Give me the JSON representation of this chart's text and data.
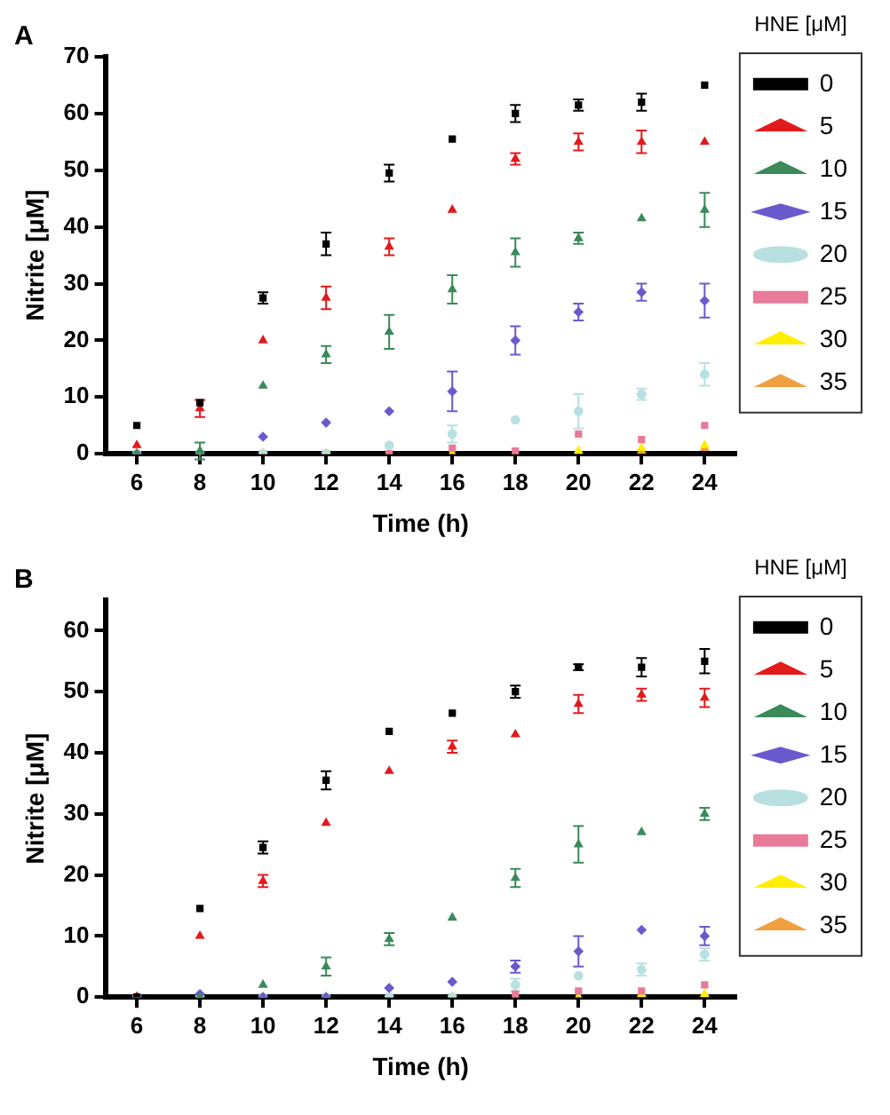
{
  "chart_data": [
    {
      "type": "scatter",
      "title": "A",
      "xlabel": "Time (h)",
      "ylabel": "Nitrite [μM]",
      "legend_title": "HNE [μM]",
      "legend": "right",
      "grid": false,
      "x": [
        6,
        8,
        10,
        12,
        14,
        16,
        18,
        20,
        22,
        24
      ],
      "xlim": [
        5,
        25
      ],
      "xticks": [
        6,
        8,
        10,
        12,
        14,
        16,
        18,
        20,
        22,
        24
      ],
      "ylim": [
        0,
        70
      ],
      "yticks": [
        0,
        10,
        20,
        30,
        40,
        50,
        60,
        70
      ],
      "series": [
        {
          "name": "0",
          "color": "#000000",
          "marker": "square",
          "values": [
            5,
            9,
            27.5,
            37,
            49.5,
            55.5,
            60,
            61.5,
            62,
            65
          ],
          "errors": [
            null,
            null,
            1,
            2,
            1.5,
            null,
            1.5,
            1,
            1.5,
            null
          ]
        },
        {
          "name": "5",
          "color": "#e31a1c",
          "marker": "triangle",
          "values": [
            1.5,
            8,
            20,
            27.5,
            36.5,
            43,
            52,
            55,
            55,
            55
          ],
          "errors": [
            null,
            1.5,
            null,
            2,
            1.5,
            null,
            1,
            1.5,
            2,
            null
          ]
        },
        {
          "name": "10",
          "color": "#3a8a5a",
          "marker": "triangle",
          "values": [
            0,
            0.5,
            12,
            17.5,
            21.5,
            29,
            35.5,
            38,
            41.5,
            43
          ],
          "errors": [
            null,
            1.5,
            null,
            1.5,
            3,
            2.5,
            2.5,
            1,
            null,
            3
          ]
        },
        {
          "name": "15",
          "color": "#6a5acd",
          "marker": "diamond",
          "values": [
            0,
            0,
            3,
            5.5,
            7.5,
            11,
            20,
            25,
            28.5,
            27
          ],
          "errors": [
            null,
            null,
            null,
            null,
            null,
            3.5,
            2.5,
            1.5,
            1.5,
            3
          ]
        },
        {
          "name": "20",
          "color": "#b8e0e0",
          "marker": "circle",
          "values": [
            0,
            0,
            0,
            0,
            1.5,
            3.5,
            6,
            7.5,
            10.5,
            14
          ],
          "errors": [
            null,
            null,
            null,
            null,
            null,
            1.5,
            null,
            3,
            1,
            2
          ]
        },
        {
          "name": "25",
          "color": "#e87a9a",
          "marker": "square",
          "values": [
            0,
            0,
            0,
            0,
            0,
            1,
            0.5,
            3.5,
            2.5,
            5
          ]
        },
        {
          "name": "30",
          "color": "#ffee00",
          "marker": "triangle",
          "values": [
            0,
            0,
            0,
            0,
            0,
            0,
            0,
            0.5,
            1,
            1.5
          ]
        },
        {
          "name": "35",
          "color": "#f0a040",
          "marker": "triangle",
          "values": [
            0,
            0,
            0,
            0,
            0,
            0,
            0,
            0,
            0.5,
            1
          ]
        }
      ]
    },
    {
      "type": "scatter",
      "title": "B",
      "xlabel": "Time (h)",
      "ylabel": "Nitrite [μM]",
      "legend_title": "HNE [μM]",
      "legend": "right",
      "grid": false,
      "x": [
        6,
        8,
        10,
        12,
        14,
        16,
        18,
        20,
        22,
        24
      ],
      "xlim": [
        5,
        25
      ],
      "xticks": [
        6,
        8,
        10,
        12,
        14,
        16,
        18,
        20,
        22,
        24
      ],
      "ylim": [
        0,
        65
      ],
      "yticks": [
        0,
        10,
        20,
        30,
        40,
        50,
        60
      ],
      "series": [
        {
          "name": "0",
          "color": "#000000",
          "marker": "square",
          "values": [
            0,
            14.5,
            24.5,
            35.5,
            43.5,
            46.5,
            50,
            54,
            54,
            55
          ],
          "errors": [
            null,
            null,
            1,
            1.5,
            null,
            null,
            1,
            0.5,
            1.5,
            2
          ]
        },
        {
          "name": "5",
          "color": "#e31a1c",
          "marker": "triangle",
          "values": [
            0,
            10,
            19,
            28.5,
            37,
            41,
            43,
            48,
            49.5,
            49
          ],
          "errors": [
            null,
            null,
            1,
            null,
            null,
            1,
            null,
            1.5,
            1,
            1.5
          ]
        },
        {
          "name": "10",
          "color": "#3a8a5a",
          "marker": "triangle",
          "values": [
            0,
            0,
            2,
            5,
            9.5,
            13,
            19.5,
            25,
            27,
            30
          ],
          "errors": [
            null,
            null,
            null,
            1.5,
            1,
            null,
            1.5,
            3,
            null,
            1
          ]
        },
        {
          "name": "15",
          "color": "#6a5acd",
          "marker": "diamond",
          "values": [
            0,
            0.5,
            0,
            0,
            1.5,
            2.5,
            5,
            7.5,
            11,
            10
          ],
          "errors": [
            null,
            null,
            null,
            null,
            null,
            null,
            1,
            2.5,
            null,
            1.5
          ]
        },
        {
          "name": "20",
          "color": "#b8e0e0",
          "marker": "circle",
          "values": [
            0,
            0,
            0,
            0,
            0,
            0,
            2,
            3.5,
            4.5,
            7
          ],
          "errors": [
            null,
            null,
            null,
            null,
            null,
            null,
            1,
            null,
            1,
            1
          ]
        },
        {
          "name": "25",
          "color": "#e87a9a",
          "marker": "square",
          "values": [
            0,
            0,
            0,
            0,
            0,
            0,
            0.5,
            1,
            1,
            2
          ]
        },
        {
          "name": "30",
          "color": "#ffee00",
          "marker": "triangle",
          "values": [
            0,
            0,
            0,
            0,
            0,
            0,
            0,
            0,
            0.5,
            0.5
          ]
        },
        {
          "name": "35",
          "color": "#f0a040",
          "marker": "triangle",
          "values": [
            0,
            0,
            0,
            0,
            0,
            0,
            0,
            0,
            0,
            0
          ]
        }
      ]
    }
  ]
}
